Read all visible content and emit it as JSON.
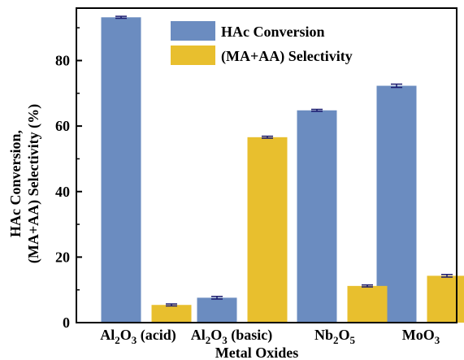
{
  "chart_data": {
    "type": "bar",
    "categories": [
      {
        "main": "Al",
        "sub1": "2",
        "mid": "O",
        "sub2": "3",
        "suffix": " (acid)"
      },
      {
        "main": "Al",
        "sub1": "2",
        "mid": "O",
        "sub2": "3",
        "suffix": " (basic)"
      },
      {
        "main": "Nb",
        "sub1": "2",
        "mid": "O",
        "sub2": "5",
        "suffix": ""
      },
      {
        "main": "MoO",
        "sub1": "3",
        "mid": "",
        "sub2": "",
        "suffix": ""
      }
    ],
    "series": [
      {
        "name": "HAc Conversion",
        "color": "#6b8cc0",
        "values": [
          93.2,
          7.6,
          64.8,
          72.3
        ],
        "errors": [
          0.3,
          0.4,
          0.3,
          0.5
        ]
      },
      {
        "name": "(MA+AA) Selectivity",
        "color": "#e8bf2e",
        "values": [
          5.4,
          56.6,
          11.2,
          14.3
        ],
        "errors": [
          0.3,
          0.3,
          0.3,
          0.4
        ]
      }
    ],
    "xlabel": "Metal Oxides",
    "ylabel_line1": "HAc Conversion,",
    "ylabel_line2": "(MA+AA) Selectivity (%)",
    "ylim": [
      0,
      96
    ],
    "yticks": [
      0,
      20,
      40,
      60,
      80
    ],
    "legend_position": "top-center",
    "grid": false
  }
}
